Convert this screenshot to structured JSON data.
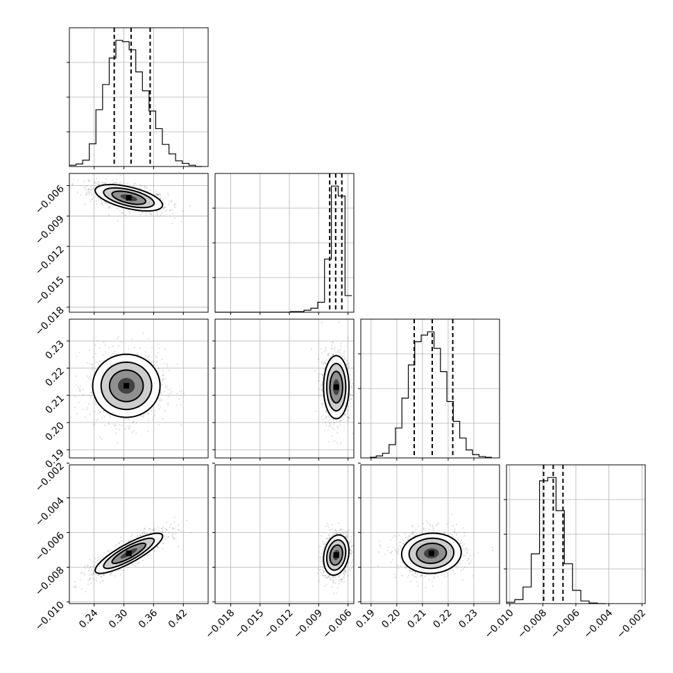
{
  "chart_data": {
    "type": "corner",
    "histograms": [
      {
        "parameter_index": 0,
        "xlim": [
          0.19,
          0.47
        ],
        "xticks": [
          0.24,
          0.3,
          0.36,
          0.42
        ],
        "xtick_labels": [
          "0.24",
          "0.30",
          "0.36",
          "0.42"
        ],
        "quantiles": [
          0.2805,
          0.3145,
          0.353
        ],
        "bin_edges": [
          0.19,
          0.2034,
          0.2168,
          0.2302,
          0.2436,
          0.257,
          0.2704,
          0.2838,
          0.2972,
          0.3106,
          0.324,
          0.3374,
          0.3508,
          0.3642,
          0.3776,
          0.391,
          0.4044,
          0.4178,
          0.4312,
          0.4446,
          0.458
        ],
        "counts": [
          2,
          4,
          10,
          36,
          90,
          130,
          172,
          200,
          198,
          185,
          150,
          120,
          88,
          60,
          35,
          20,
          9,
          5,
          2,
          0
        ]
      },
      {
        "parameter_index": 1,
        "xlim": [
          -0.0196,
          -0.0054
        ],
        "xticks": [
          -0.018,
          -0.015,
          -0.012,
          -0.009,
          -0.006
        ],
        "xtick_labels": [
          "−0.018",
          "−0.015",
          "−0.012",
          "−0.009",
          "−0.006"
        ],
        "quantiles": [
          -0.00787,
          -0.00726,
          -0.00663
        ],
        "bin_edges": [
          -0.0196,
          -0.0189,
          -0.0182,
          -0.0175,
          -0.0168,
          -0.0161,
          -0.0154,
          -0.0147,
          -0.014,
          -0.0133,
          -0.0126,
          -0.0119,
          -0.0112,
          -0.0105,
          -0.0098,
          -0.0091,
          -0.0084,
          -0.0077,
          -0.007,
          -0.0063,
          -0.0056
        ],
        "counts": [
          0,
          0,
          0,
          0,
          0,
          0,
          0,
          0,
          0,
          0,
          0,
          1,
          1,
          3,
          6,
          15,
          80,
          190,
          175,
          25
        ]
      },
      {
        "parameter_index": 2,
        "xlim": [
          0.186,
          0.24
        ],
        "xticks": [
          0.19,
          0.2,
          0.21,
          0.22,
          0.23
        ],
        "xtick_labels": [
          "0.19",
          "0.20",
          "0.21",
          "0.22",
          "0.23"
        ],
        "quantiles": [
          0.2068,
          0.2138,
          0.2218
        ],
        "bin_edges": [
          0.1895,
          0.192,
          0.1945,
          0.197,
          0.1995,
          0.202,
          0.2045,
          0.207,
          0.2095,
          0.212,
          0.2145,
          0.217,
          0.2195,
          0.222,
          0.2245,
          0.227,
          0.2295,
          0.232,
          0.2345,
          0.237
        ],
        "counts": [
          1,
          3,
          7,
          20,
          45,
          90,
          140,
          175,
          185,
          190,
          165,
          130,
          85,
          55,
          30,
          12,
          5,
          2,
          1
        ]
      },
      {
        "parameter_index": 3,
        "xlim": [
          -0.0102,
          -0.0018
        ],
        "xticks": [
          -0.01,
          -0.008,
          -0.006,
          -0.004,
          -0.002
        ],
        "xtick_labels": [
          "−0.010",
          "−0.008",
          "−0.006",
          "−0.004",
          "−0.002"
        ],
        "quantiles": [
          -0.00795,
          -0.00737,
          -0.00678
        ],
        "bin_edges": [
          -0.0102,
          -0.0097,
          -0.0092,
          -0.0087,
          -0.0082,
          -0.0077,
          -0.0072,
          -0.0067,
          -0.0062,
          -0.0057,
          -0.0052,
          -0.0047,
          -0.0042
        ],
        "counts": [
          2,
          6,
          25,
          75,
          185,
          190,
          140,
          60,
          20,
          4,
          1,
          0
        ]
      }
    ],
    "scatter_panels": [
      {
        "x_param": 0,
        "y_param": 1,
        "xlim": [
          0.19,
          0.47
        ],
        "ylim": [
          -0.0185,
          -0.0048
        ],
        "yticks": [
          -0.006,
          -0.009,
          -0.012,
          -0.015,
          -0.018
        ],
        "ytick_labels": [
          "−0.006",
          "−0.009",
          "−0.012",
          "−0.015",
          "−0.018"
        ],
        "center": [
          0.31,
          -0.0072
        ],
        "sigma": [
          0.034,
          0.00065
        ],
        "rho": -0.55
      },
      {
        "x_param": 0,
        "y_param": 2,
        "xlim": [
          0.19,
          0.47
        ],
        "ylim": [
          0.187,
          0.238
        ],
        "yticks": [
          0.19,
          0.2,
          0.21,
          0.22,
          0.23
        ],
        "ytick_labels": [
          "0.19",
          "0.20",
          "0.21",
          "0.22",
          "0.23"
        ],
        "center": [
          0.305,
          0.2135
        ],
        "sigma": [
          0.034,
          0.0058
        ],
        "rho": 0.0
      },
      {
        "x_param": 1,
        "y_param": 2,
        "xlim": [
          -0.0196,
          -0.0054
        ],
        "ylim": [
          0.187,
          0.238
        ],
        "center": [
          -0.0072,
          0.213
        ],
        "sigma": [
          0.00065,
          0.0058
        ],
        "rho": 0.0
      },
      {
        "x_param": 0,
        "y_param": 3,
        "xlim": [
          0.19,
          0.47
        ],
        "ylim": [
          -0.0101,
          -0.0021
        ],
        "yticks": [
          -0.002,
          -0.004,
          -0.006,
          -0.008,
          -0.01
        ],
        "ytick_labels": [
          "−0.002",
          "−0.004",
          "−0.006",
          "−0.008",
          "−0.010"
        ],
        "center": [
          0.31,
          -0.0072
        ],
        "sigma": [
          0.034,
          0.00058
        ],
        "rho": 0.85
      },
      {
        "x_param": 1,
        "y_param": 3,
        "xlim": [
          -0.0196,
          -0.0054
        ],
        "ylim": [
          -0.0101,
          -0.0021
        ],
        "center": [
          -0.0072,
          -0.0073
        ],
        "sigma": [
          0.00065,
          0.00058
        ],
        "rho": 0.2
      },
      {
        "x_param": 2,
        "y_param": 3,
        "xlim": [
          0.186,
          0.24
        ],
        "ylim": [
          -0.0101,
          -0.0021
        ],
        "center": [
          0.2135,
          -0.0072
        ],
        "sigma": [
          0.0058,
          0.00058
        ],
        "rho": 0.05
      }
    ],
    "grid": true
  }
}
